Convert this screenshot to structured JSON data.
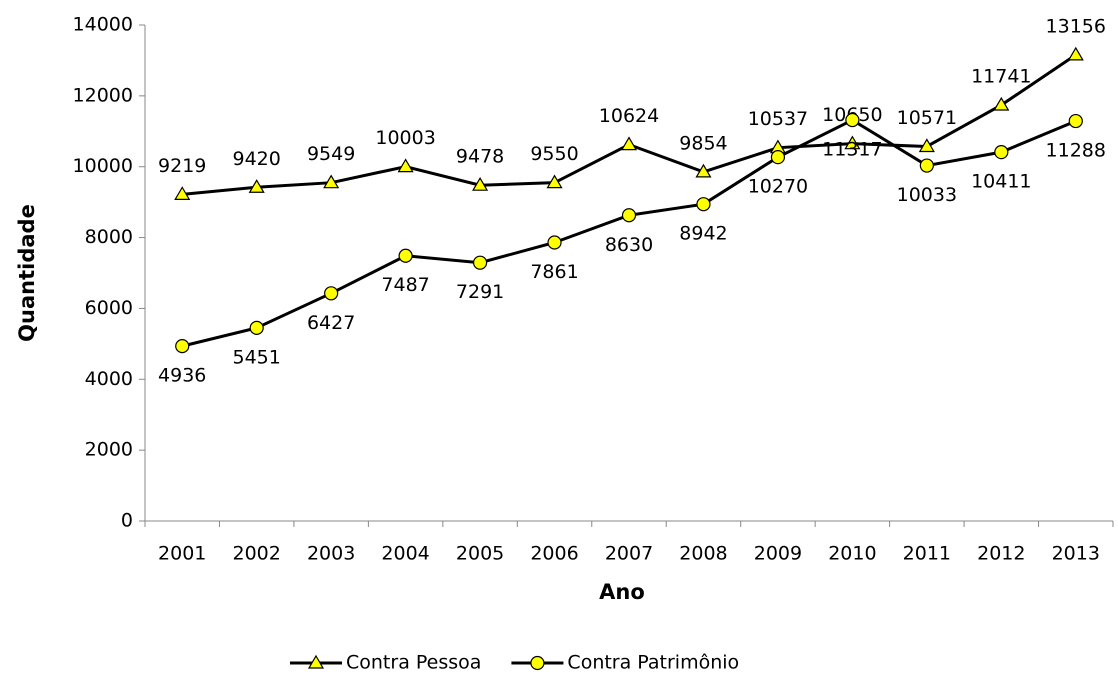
{
  "chart_data": {
    "type": "line",
    "x_label": "Ano",
    "y_label": "Quantidade",
    "categories": [
      "2001",
      "2002",
      "2003",
      "2004",
      "2005",
      "2006",
      "2007",
      "2008",
      "2009",
      "2010",
      "2011",
      "2012",
      "2013"
    ],
    "series": [
      {
        "name": "Contra Pessoa",
        "color": "#000000",
        "marker": "triangle",
        "marker_color": "#ffff00",
        "values": [
          9219,
          9420,
          9549,
          10003,
          9478,
          9550,
          10624,
          9854,
          10537,
          10650,
          10571,
          11741,
          13156
        ]
      },
      {
        "name": "Contra Patrimônio",
        "color": "#000000",
        "marker": "circle",
        "marker_color": "#ffff00",
        "values": [
          4936,
          5451,
          6427,
          7487,
          7291,
          7861,
          8630,
          8942,
          10270,
          11317,
          10033,
          10411,
          11288
        ]
      }
    ],
    "ylim": [
      0,
      14000
    ],
    "yticks": [
      0,
      2000,
      4000,
      6000,
      8000,
      10000,
      12000,
      14000
    ],
    "grid": false,
    "legend": "bottom"
  }
}
